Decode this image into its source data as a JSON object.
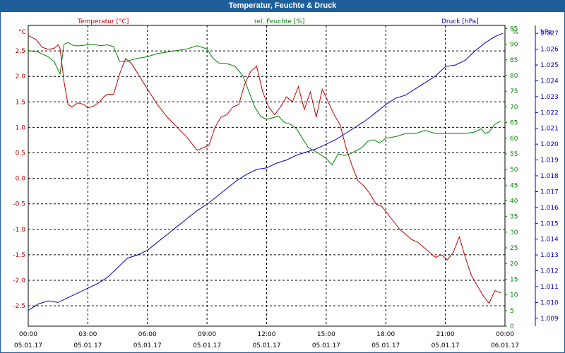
{
  "window": {
    "title": "Temperatur, Feuchte & Druck"
  },
  "colors": {
    "temperature": "#c00000",
    "humidity": "#008000",
    "pressure": "#0000bb",
    "grid": "#000000",
    "titlebar": "#1f5f99"
  },
  "chart_data": {
    "type": "line",
    "title": "Temperatur, Feuchte & Druck",
    "x_range": [
      0,
      24
    ],
    "x_ticks": [
      {
        "time": "00:00",
        "date": "05.01.17"
      },
      {
        "time": "03:00",
        "date": "05.01.17"
      },
      {
        "time": "06:00",
        "date": "05.01.17"
      },
      {
        "time": "09:00",
        "date": "05.01.17"
      },
      {
        "time": "12:00",
        "date": "05.01.17"
      },
      {
        "time": "15:00",
        "date": "05.01.17"
      },
      {
        "time": "18:00",
        "date": "05.01.17"
      },
      {
        "time": "21:00",
        "date": "05.01.17"
      },
      {
        "time": "00:00",
        "date": "06.01.17"
      }
    ],
    "axes": {
      "temperature": {
        "unit": "°C",
        "label": "Temperatur [°C]",
        "range": [
          -2.9,
          3.0
        ],
        "ticks": [
          "2.5",
          "2.0",
          "1.5",
          "1.0",
          "0.5",
          "0.0",
          "-0.5",
          "-1.0",
          "-1.5",
          "-2.0",
          "-2.5"
        ]
      },
      "humidity": {
        "unit": "%",
        "label": "rel. Feuchte [%]",
        "range": [
          0,
          96
        ],
        "ticks": [
          "95",
          "90",
          "85",
          "80",
          "75",
          "70",
          "65",
          "60",
          "55",
          "50",
          "45",
          "40",
          "35",
          "30",
          "25",
          "20",
          "15",
          "10",
          "5",
          "0"
        ]
      },
      "pressure": {
        "unit": "hPa",
        "label": "Druck [hPa]",
        "range": [
          1.0085,
          1.0275
        ],
        "ticks": [
          "1.027",
          "1.026",
          "1.025",
          "1.024",
          "1.023",
          "1.022",
          "1.021",
          "1.020",
          "1.019",
          "1.018",
          "1.017",
          "1.016",
          "1.015",
          "1.014",
          "1.013",
          "1.012",
          "1.011",
          "1.010",
          "1.009"
        ]
      }
    },
    "series": [
      {
        "name": "Temperatur [°C]",
        "axis": "temperature",
        "x": [
          0,
          0.4,
          0.7,
          1.0,
          1.3,
          1.5,
          1.6,
          1.8,
          2.0,
          2.2,
          2.5,
          2.8,
          3.0,
          3.3,
          3.6,
          3.8,
          4.0,
          4.3,
          4.6,
          4.9,
          5.2,
          5.6,
          6.0,
          6.5,
          7.0,
          7.5,
          8.0,
          8.5,
          8.8,
          9.1,
          9.4,
          9.7,
          10.0,
          10.3,
          10.6,
          10.9,
          11.2,
          11.5,
          11.8,
          12.1,
          12.4,
          12.7,
          13.0,
          13.3,
          13.6,
          13.9,
          14.2,
          14.5,
          14.8,
          15.1,
          15.4,
          15.7,
          16.0,
          16.3,
          16.6,
          16.9,
          17.2,
          17.5,
          17.8,
          18.1,
          18.4,
          18.7,
          19.0,
          19.3,
          19.6,
          19.9,
          20.2,
          20.5,
          20.8,
          21.1,
          21.4,
          21.7,
          22.0,
          22.3,
          22.6,
          22.9,
          23.2,
          23.5,
          23.8
        ],
        "values": [
          2.8,
          2.72,
          2.57,
          2.53,
          2.55,
          2.62,
          2.55,
          1.9,
          1.45,
          1.4,
          1.48,
          1.45,
          1.38,
          1.42,
          1.5,
          1.6,
          1.65,
          1.65,
          2.05,
          2.35,
          2.25,
          2.0,
          1.75,
          1.45,
          1.2,
          1.0,
          0.8,
          0.55,
          0.6,
          0.65,
          1.0,
          1.2,
          1.25,
          1.4,
          1.45,
          1.85,
          2.1,
          2.2,
          1.7,
          1.4,
          1.25,
          1.4,
          1.6,
          1.5,
          1.8,
          1.35,
          1.7,
          1.2,
          1.75,
          1.5,
          1.25,
          1.05,
          0.6,
          0.25,
          -0.05,
          -0.15,
          -0.3,
          -0.5,
          -0.55,
          -0.7,
          -0.85,
          -1.0,
          -1.1,
          -1.2,
          -1.25,
          -1.35,
          -1.45,
          -1.55,
          -1.5,
          -1.6,
          -1.45,
          -1.15,
          -1.55,
          -1.9,
          -2.1,
          -2.3,
          -2.45,
          -2.2,
          -2.25
        ]
      },
      {
        "name": "rel. Feuchte [%]",
        "axis": "humidity",
        "x": [
          0,
          0.5,
          1.0,
          1.3,
          1.6,
          1.8,
          2.0,
          2.3,
          2.6,
          3.0,
          3.3,
          3.6,
          4.0,
          4.3,
          4.6,
          4.9,
          5.2,
          5.5,
          6.0,
          6.5,
          7.0,
          7.5,
          8.0,
          8.5,
          9.0,
          9.3,
          9.6,
          10.0,
          10.4,
          10.8,
          11.1,
          11.4,
          11.7,
          12.0,
          12.3,
          12.6,
          12.9,
          13.2,
          13.5,
          13.8,
          14.1,
          14.4,
          14.7,
          15.0,
          15.3,
          15.6,
          15.9,
          16.2,
          16.5,
          16.8,
          17.1,
          17.4,
          17.7,
          18.0,
          18.5,
          19.0,
          19.5,
          20.0,
          20.5,
          21.0,
          21.5,
          22.0,
          22.5,
          22.8,
          23.0,
          23.2,
          23.5,
          23.8
        ],
        "values": [
          88,
          87.5,
          86,
          84.5,
          80.5,
          90,
          90.5,
          89.5,
          89.5,
          89.8,
          90,
          89.5,
          89.8,
          89.2,
          84.5,
          84.5,
          85,
          85.5,
          86,
          87,
          87.5,
          88,
          88.5,
          89.5,
          88.5,
          85.5,
          84,
          83.8,
          83,
          80,
          75,
          70,
          67,
          66,
          66.5,
          67,
          65,
          64.5,
          63,
          60,
          57,
          56,
          54.8,
          53.5,
          51.5,
          55,
          54.5,
          55,
          56,
          57,
          59,
          59.5,
          58.5,
          60,
          60.5,
          61.5,
          61.5,
          62.5,
          61.5,
          61.5,
          61.5,
          61.5,
          62,
          63,
          61.5,
          62,
          64.5,
          65.5
        ]
      },
      {
        "name": "Druck [hPa]",
        "axis": "pressure",
        "x": [
          0,
          0.5,
          1.0,
          1.5,
          2.0,
          2.5,
          3.0,
          3.5,
          4.0,
          4.5,
          5.0,
          5.5,
          6.0,
          6.5,
          7.0,
          7.5,
          8.0,
          8.5,
          9.0,
          9.5,
          10.0,
          10.5,
          11.0,
          11.5,
          12.0,
          12.5,
          13.0,
          13.5,
          14.0,
          14.5,
          15.0,
          15.5,
          16.0,
          16.5,
          17.0,
          17.5,
          18.0,
          18.5,
          19.0,
          19.5,
          20.0,
          20.5,
          21.0,
          21.5,
          22.0,
          22.5,
          23.0,
          23.5,
          23.9
        ],
        "values": [
          1.0095,
          1.0099,
          1.0101,
          1.01,
          1.0103,
          1.0106,
          1.0109,
          1.0112,
          1.0116,
          1.0122,
          1.0128,
          1.013,
          1.0133,
          1.0138,
          1.0143,
          1.0148,
          1.0153,
          1.0158,
          1.0162,
          1.0167,
          1.0172,
          1.0177,
          1.0181,
          1.0184,
          1.0185,
          1.0188,
          1.019,
          1.0193,
          1.0195,
          1.0197,
          1.02,
          1.0203,
          1.0207,
          1.0211,
          1.0215,
          1.022,
          1.0225,
          1.0229,
          1.0231,
          1.0235,
          1.0239,
          1.0243,
          1.0249,
          1.025,
          1.0253,
          1.0259,
          1.0264,
          1.0268,
          1.027
        ]
      }
    ]
  }
}
